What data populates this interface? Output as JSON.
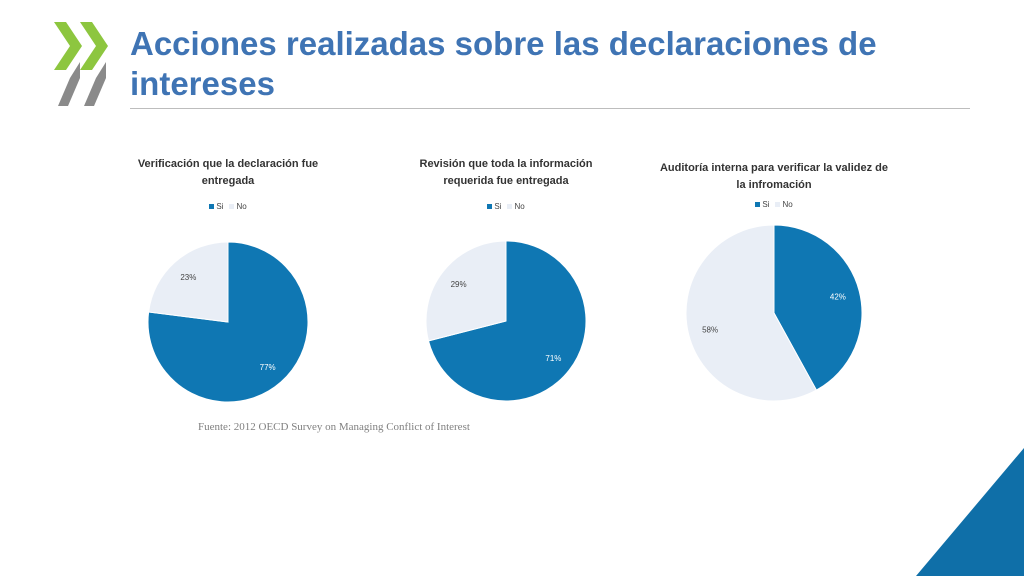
{
  "slide": {
    "title": "Acciones realizadas sobre las declaraciones de intereses",
    "source": "Fuente: 2012 OECD Survey on Managing Conflict of Interest",
    "colors": {
      "title": "#3f74b4",
      "chevron_green": "#8dc63f",
      "chevron_gray": "#8a8a8a",
      "corner_blue": "#0f6fa8"
    }
  },
  "chart_data": [
    {
      "type": "pie",
      "title": "Verificación que la declaración fue entregada",
      "legend": [
        "Si",
        "No"
      ],
      "legend_position": "top",
      "slices": [
        {
          "label": "Si",
          "value": 77,
          "data_label": "77%",
          "color": "#0f77b3"
        },
        {
          "label": "No",
          "value": 23,
          "data_label": "23%",
          "color": "#e9eef6"
        }
      ]
    },
    {
      "type": "pie",
      "title": "Revisión que toda la información requerida fue entregada",
      "legend": [
        "Si",
        "No"
      ],
      "legend_position": "top",
      "slices": [
        {
          "label": "Si",
          "value": 71,
          "data_label": "71%",
          "color": "#0f77b3"
        },
        {
          "label": "No",
          "value": 29,
          "data_label": "29%",
          "color": "#e9eef6"
        }
      ]
    },
    {
      "type": "pie",
      "title": "Auditoría interna para verificar la validez de la infromación",
      "legend": [
        "Si",
        "No"
      ],
      "legend_position": "top",
      "slices": [
        {
          "label": "Si",
          "value": 42,
          "data_label": "42%",
          "color": "#0f77b3"
        },
        {
          "label": "No",
          "value": 58,
          "data_label": "58%",
          "color": "#e9eef6"
        }
      ]
    }
  ]
}
